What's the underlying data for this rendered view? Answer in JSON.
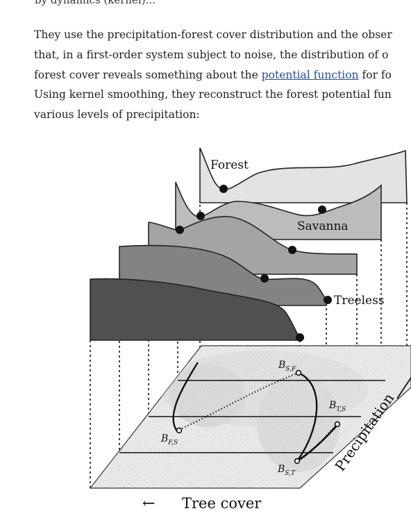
{
  "article": {
    "prev_line_fragment": "by dynamics (kernel)...",
    "paragraph": {
      "line1": "They use the precipitation-forest cover distribution and the obser",
      "line2": "that, in a first-order system subject to noise, the distribution of o",
      "line3_before": "forest cover reveals something about the ",
      "line3_link": "potential function",
      "line3_after": " for fo",
      "line4": "Using kernel smoothing, they reconstruct the forest potential fun",
      "line5": "various levels of precipitation:"
    }
  },
  "figure": {
    "state_labels": {
      "forest": "Forest",
      "savanna": "Savanna",
      "treeless": "Treeless"
    },
    "axis_labels": {
      "tree_cover": "Tree cover",
      "tree_cover_arrow": "←",
      "precipitation": "Precipitation"
    },
    "bifurcations": {
      "b_sf": {
        "main": "B",
        "sub": "S,F"
      },
      "b_fs": {
        "main": "B",
        "sub": "F,S"
      },
      "b_ts": {
        "main": "B",
        "sub": "T,S"
      },
      "b_st": {
        "main": "B",
        "sub": "S,T"
      }
    },
    "colors": {
      "layer1": "#e3e3e3",
      "layer2": "#bcbcbc",
      "layer3": "#a4a4a4",
      "layer4": "#838383",
      "layer5": "#505050",
      "link": "#1a4fb8"
    }
  }
}
